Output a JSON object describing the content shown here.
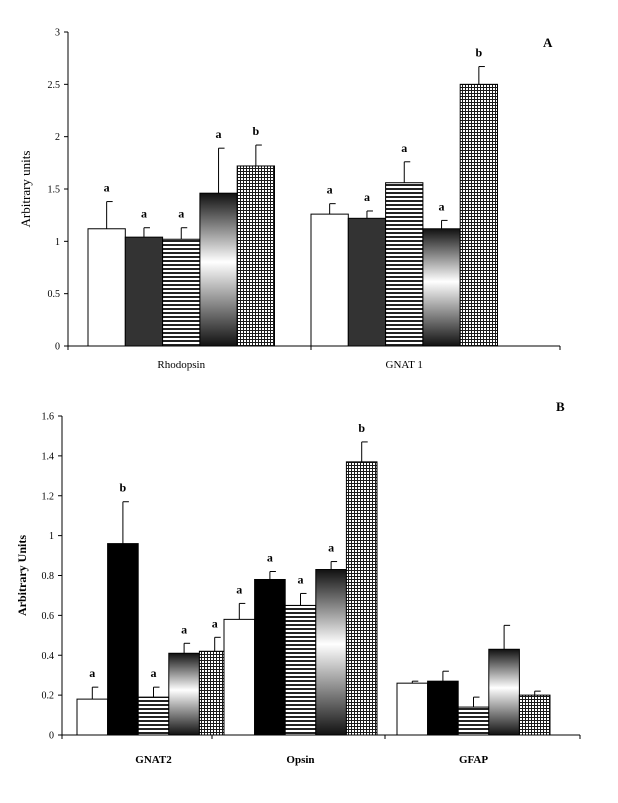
{
  "chart_data": [
    {
      "type": "bar",
      "panel_label": "A",
      "categories": [
        "Rhodopsin",
        "GNAT 1"
      ],
      "series": [
        {
          "values": [
            1.12,
            1.26
          ],
          "errors": [
            0.26,
            0.1
          ],
          "pattern": "white"
        },
        {
          "values": [
            1.04,
            1.22
          ],
          "errors": [
            0.09,
            0.07
          ],
          "pattern": "dark"
        },
        {
          "values": [
            1.02,
            1.56
          ],
          "errors": [
            0.11,
            0.2
          ],
          "pattern": "hlines"
        },
        {
          "values": [
            1.46,
            1.12
          ],
          "errors": [
            0.43,
            0.08
          ],
          "pattern": "vgradient"
        },
        {
          "values": [
            1.72,
            2.5
          ],
          "errors": [
            0.2,
            0.17
          ],
          "pattern": "grid"
        }
      ],
      "significance": [
        [
          "a",
          "a"
        ],
        [
          "a",
          "a"
        ],
        [
          "a",
          "a"
        ],
        [
          "a",
          "a"
        ],
        [
          "b",
          "b"
        ]
      ],
      "ylabel": "Arbitrary units",
      "ylim": [
        0,
        3
      ],
      "yticks": [
        "0",
        "0.5",
        "1",
        "1.5",
        "2",
        "2.5",
        "3"
      ]
    },
    {
      "type": "bar",
      "panel_label": "B",
      "categories": [
        "GNAT2",
        "Opsin",
        "GFAP"
      ],
      "series": [
        {
          "values": [
            0.18,
            0.58,
            0.26
          ],
          "errors": [
            0.06,
            0.08,
            0.01
          ],
          "pattern": "white"
        },
        {
          "values": [
            0.96,
            0.78,
            0.27
          ],
          "errors": [
            0.21,
            0.04,
            0.05
          ],
          "pattern": "black"
        },
        {
          "values": [
            0.19,
            0.65,
            0.14
          ],
          "errors": [
            0.05,
            0.06,
            0.05
          ],
          "pattern": "hlines"
        },
        {
          "values": [
            0.41,
            0.83,
            0.43
          ],
          "errors": [
            0.05,
            0.04,
            0.12
          ],
          "pattern": "vgradient"
        },
        {
          "values": [
            0.42,
            1.37,
            0.2
          ],
          "errors": [
            0.07,
            0.1,
            0.02
          ],
          "pattern": "grid"
        }
      ],
      "significance": [
        [
          "a",
          "a",
          ""
        ],
        [
          "b",
          "a",
          ""
        ],
        [
          "a",
          "a",
          ""
        ],
        [
          "a",
          "a",
          ""
        ],
        [
          "a",
          "b",
          ""
        ]
      ],
      "ylabel": "Arbitrary Units",
      "ylim": [
        0,
        1.6
      ],
      "yticks": [
        "0",
        "0.2",
        "0.4",
        "0.6",
        "0.8",
        "1",
        "1.2",
        "1.4",
        "1.6"
      ]
    }
  ]
}
